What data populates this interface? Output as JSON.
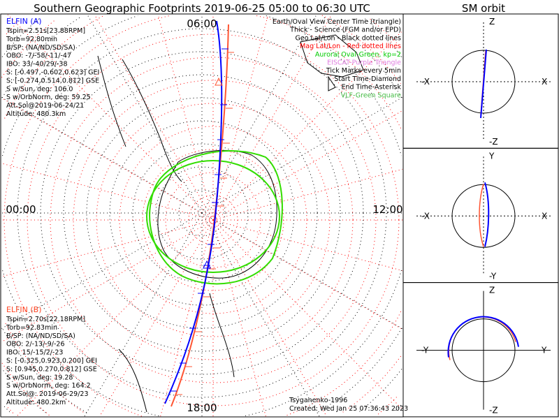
{
  "title": "Southern Geographic Footprints 2019-06-25 05:00 to 06:30 UTC",
  "orbit_title": "SM orbit",
  "time_labels": {
    "top": "06:00",
    "left": "00:00",
    "right": "12:00",
    "bottom": "18:00"
  },
  "legend": [
    {
      "text": "Earth/Oval View Center Time (triangle)",
      "color": "#000000"
    },
    {
      "text": "Thick - Science (FGM and/or EPD)",
      "color": "#000000"
    },
    {
      "text": "Geo Lat/Lon - Black dotted lines",
      "color": "#000000"
    },
    {
      "text": "Mag Lat/Lon - Red dotted lines",
      "color": "#ff0000"
    },
    {
      "text": "Auroral Oval-Green, kp=2",
      "color": "#00cc00"
    },
    {
      "text": "EISCAT-Purple Triangle",
      "color": "#e080e0"
    },
    {
      "text": "Tick Marks every 5min",
      "color": "#000000"
    },
    {
      "text": "Start Time-Diamond",
      "color": "#000000"
    },
    {
      "text": "End Time-Asterisk",
      "color": "#000000"
    },
    {
      "text": "VLF-Green Square",
      "color": "#44bb44"
    }
  ],
  "elfin_a": {
    "name": "ELFIN (A)",
    "color": "#0000ff",
    "lines": [
      "Tspin=2.51s[23.88RPM]",
      "Torb=92.80min",
      "B/SP: (NA/ND/SD/SA)",
      "OBO: -7/-58/-11/-47",
      "IBO: 33/-40/29/-38",
      "S: [-0.497,-0.602,0.623] GEI",
      "S: [-0.274,0.514,0.812] GSE",
      "S w/Sun, deg: 106.0",
      "S w/OrbNorm, deg: 59.25",
      "Att.Sol@2019-06-24/21",
      "Altitude: 480.3km"
    ]
  },
  "elfin_b": {
    "name": "ELFIN (B)",
    "color": "#ff4422",
    "lines": [
      "Tspin=2.70s[22.18RPM]",
      "Torb=92.83min",
      "B/SP: (NA/ND/SD/SA)",
      "OBO: 2/-13/-9/-26",
      "IBO: 15/-15/2/-23",
      "S: [-0.325,0.923,0.200] GEI",
      "S: [0.945,0.270,0.812] GSE",
      "S w/Sun, deg: 19.28",
      "S w/OrbNorm, deg: 164.2",
      "Att.Sol@: 2019-06-29/23",
      "Altitude: 480.2km"
    ]
  },
  "credit": "Tsyganenko-1996",
  "created": "Created: Wed Jan 25 07:36:43 2023",
  "orbit_panels": [
    {
      "top": "Z",
      "bottom": "-Z",
      "left": "-X",
      "right": "X"
    },
    {
      "top": "Y",
      "bottom": "-Y",
      "left": "-X",
      "right": "X"
    },
    {
      "top": "Z",
      "bottom": "-Z",
      "left": "-Y",
      "right": "Y"
    }
  ],
  "colors": {
    "blue": "#0000ff",
    "orange": "#ff5533",
    "oval": "#33dd00",
    "grid_mag": "#ff0000"
  }
}
